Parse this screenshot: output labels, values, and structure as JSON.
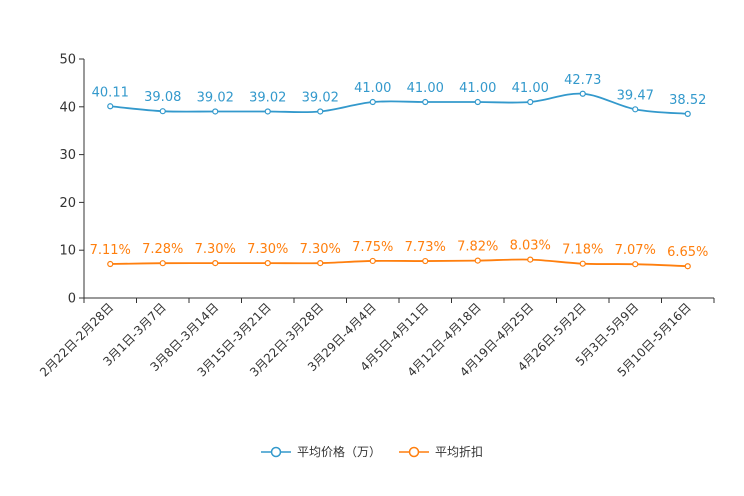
{
  "chart_data": {
    "type": "line",
    "title": "",
    "xlabel": "",
    "ylabel": "",
    "ylim": [
      0,
      50
    ],
    "yticks": [
      0,
      10,
      20,
      30,
      40,
      50
    ],
    "categories": [
      "2月22日-2月28日",
      "3月1日-3月7日",
      "3月8日-3月14日",
      "3月15日-3月21日",
      "3月22日-3月28日",
      "3月29日-4月4日",
      "4月5日-4月11日",
      "4月12日-4月18日",
      "4月19日-4月25日",
      "4月26日-5月2日",
      "5月3日-5月9日",
      "5月10日-5月16日"
    ],
    "series": [
      {
        "name": "平均价格（万）",
        "color": "#3399cc",
        "values": [
          40.11,
          39.08,
          39.02,
          39.02,
          39.02,
          41.0,
          41.0,
          41.0,
          41.0,
          42.73,
          39.47,
          38.52
        ],
        "labels": [
          "40.11",
          "39.08",
          "39.02",
          "39.02",
          "39.02",
          "41.00",
          "41.00",
          "41.00",
          "41.00",
          "42.73",
          "39.47",
          "38.52"
        ]
      },
      {
        "name": "平均折扣",
        "color": "#ff7f0e",
        "values": [
          7.11,
          7.28,
          7.3,
          7.3,
          7.3,
          7.75,
          7.73,
          7.82,
          8.03,
          7.18,
          7.07,
          6.65
        ],
        "labels": [
          "7.11%",
          "7.28%",
          "7.30%",
          "7.30%",
          "7.30%",
          "7.75%",
          "7.73%",
          "7.82%",
          "8.03%",
          "7.18%",
          "7.07%",
          "6.65%"
        ]
      }
    ],
    "legend_position": "bottom",
    "grid": false
  }
}
